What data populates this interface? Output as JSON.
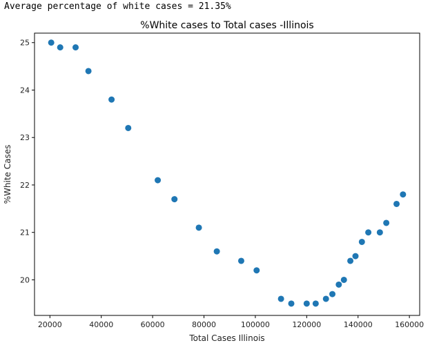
{
  "output": {
    "text": "Average percentage of white cases = 21.35%"
  },
  "chart_data": {
    "type": "scatter",
    "title": "%White cases to Total cases -Illinois",
    "xlabel": "Total Cases Illinois",
    "ylabel": "%White Cases",
    "xlim": [
      14000,
      164000
    ],
    "ylim": [
      19.25,
      25.2
    ],
    "xticks": [
      20000,
      40000,
      60000,
      80000,
      100000,
      120000,
      140000,
      160000
    ],
    "yticks": [
      20,
      21,
      22,
      23,
      24,
      25
    ],
    "grid": false,
    "marker_color": "#1f77b4",
    "points": [
      {
        "x": 20500,
        "y": 25.0
      },
      {
        "x": 24000,
        "y": 24.9
      },
      {
        "x": 30000,
        "y": 24.9
      },
      {
        "x": 35000,
        "y": 24.4
      },
      {
        "x": 44000,
        "y": 23.8
      },
      {
        "x": 50500,
        "y": 23.2
      },
      {
        "x": 62000,
        "y": 22.1
      },
      {
        "x": 68500,
        "y": 21.7
      },
      {
        "x": 78000,
        "y": 21.1
      },
      {
        "x": 85000,
        "y": 20.6
      },
      {
        "x": 94500,
        "y": 20.4
      },
      {
        "x": 100500,
        "y": 20.2
      },
      {
        "x": 110000,
        "y": 19.6
      },
      {
        "x": 114000,
        "y": 19.5
      },
      {
        "x": 120000,
        "y": 19.5
      },
      {
        "x": 123500,
        "y": 19.5
      },
      {
        "x": 127500,
        "y": 19.6
      },
      {
        "x": 130000,
        "y": 19.7
      },
      {
        "x": 132500,
        "y": 19.9
      },
      {
        "x": 134500,
        "y": 20.0
      },
      {
        "x": 137000,
        "y": 20.4
      },
      {
        "x": 139000,
        "y": 20.5
      },
      {
        "x": 141500,
        "y": 20.8
      },
      {
        "x": 144000,
        "y": 21.0
      },
      {
        "x": 148500,
        "y": 21.0
      },
      {
        "x": 151000,
        "y": 21.2
      },
      {
        "x": 155000,
        "y": 21.6
      },
      {
        "x": 157500,
        "y": 21.8
      }
    ]
  }
}
